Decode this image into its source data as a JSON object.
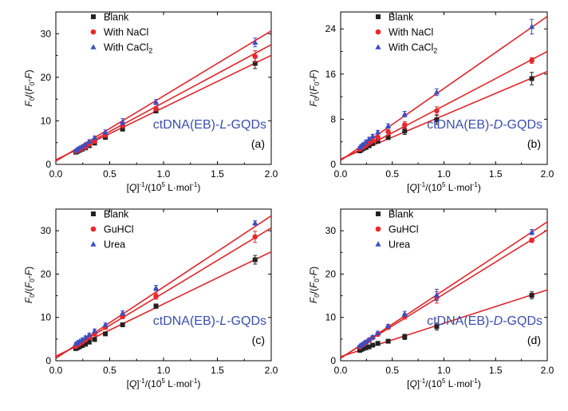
{
  "colors": {
    "blank": "#222222",
    "second": "#e8282b",
    "third": "#3a4fc4",
    "fit": "#e0262a",
    "label": "#3a4fb0"
  },
  "chart_data": [
    {
      "type": "scatter",
      "panel": "(a)",
      "title": "ctDNA(EB)-L-GQDs",
      "title_parts": [
        "ctDNA(EB)-",
        "L",
        "-GQDs"
      ],
      "xlabel_parts": [
        "[",
        "Q",
        "]",
        "-1",
        "/(10",
        "5",
        " L·mol",
        "-1",
        ")"
      ],
      "ylabel_parts": [
        "F",
        "0",
        "/(",
        "F",
        "0",
        "-",
        "F",
        ")"
      ],
      "xlim": [
        0,
        2.0
      ],
      "ylim": [
        0,
        35
      ],
      "xticks": [
        "0.0",
        "0.5",
        "1.0",
        "1.5",
        "2.0"
      ],
      "yticks": [
        0,
        10,
        20,
        30
      ],
      "legend_position": "top-left",
      "series": [
        {
          "name": "Blank",
          "marker": "square",
          "color": "#222222",
          "x": [
            0.185,
            0.2,
            0.22,
            0.245,
            0.275,
            0.31,
            0.36,
            0.46,
            0.62,
            0.93,
            1.85
          ],
          "y": [
            2.8,
            3.0,
            3.2,
            3.5,
            3.8,
            4.3,
            4.9,
            6.2,
            8.1,
            12.3,
            23.2
          ],
          "err": [
            0.2,
            0.2,
            0.2,
            0.2,
            0.2,
            0.3,
            0.3,
            0.3,
            0.4,
            0.5,
            1.2
          ],
          "fit": {
            "intercept": 1.05,
            "slope": 12.0
          }
        },
        {
          "name": "With NaCl",
          "marker": "circle",
          "color": "#e8282b",
          "x": [
            0.185,
            0.2,
            0.22,
            0.245,
            0.275,
            0.31,
            0.36,
            0.46,
            0.62,
            0.93,
            1.85
          ],
          "y": [
            3.0,
            3.2,
            3.4,
            3.7,
            4.0,
            4.6,
            5.3,
            6.7,
            8.9,
            12.8,
            24.8
          ],
          "err": [
            0.2,
            0.2,
            0.2,
            0.2,
            0.2,
            0.3,
            0.3,
            0.4,
            0.5,
            0.5,
            1.3
          ],
          "fit": {
            "intercept": 0.9,
            "slope": 13.3
          }
        },
        {
          "name": "With CaCl2",
          "marker": "triangle",
          "color": "#3a4fc4",
          "x": [
            0.185,
            0.2,
            0.22,
            0.245,
            0.275,
            0.31,
            0.36,
            0.46,
            0.62,
            0.93,
            1.85
          ],
          "y": [
            3.2,
            3.5,
            3.8,
            4.1,
            4.6,
            5.3,
            6.1,
            7.4,
            9.8,
            14.3,
            28.0
          ],
          "err": [
            0.2,
            0.2,
            0.2,
            0.3,
            0.3,
            0.3,
            0.4,
            0.5,
            0.7,
            0.6,
            1.0
          ],
          "fit": {
            "intercept": 0.75,
            "slope": 14.95
          }
        }
      ]
    },
    {
      "type": "scatter",
      "panel": "(b)",
      "title": "ctDNA(EB)-D-GQDs",
      "title_parts": [
        "ctDNA(EB)-",
        "D",
        "-GQDs"
      ],
      "xlabel_parts": [
        "[",
        "Q",
        "]",
        "-1",
        "/(10",
        "5",
        " L·mol",
        "-1",
        ")"
      ],
      "ylabel_parts": [
        "F",
        "0",
        "/(",
        "F",
        "0",
        "-",
        "F",
        ")"
      ],
      "xlim": [
        0,
        2.0
      ],
      "ylim": [
        0,
        27
      ],
      "xticks": [
        "0.0",
        "0.5",
        "1.0",
        "1.5",
        "2.0"
      ],
      "yticks": [
        0,
        8,
        16,
        24
      ],
      "legend_position": "top-left",
      "series": [
        {
          "name": "Blank",
          "marker": "square",
          "color": "#222222",
          "x": [
            0.185,
            0.2,
            0.22,
            0.245,
            0.275,
            0.31,
            0.36,
            0.46,
            0.62,
            0.93,
            1.85
          ],
          "y": [
            2.4,
            2.6,
            2.8,
            3.0,
            3.3,
            3.7,
            4.1,
            4.8,
            5.9,
            7.9,
            15.2
          ],
          "err": [
            0.2,
            0.2,
            0.2,
            0.2,
            0.2,
            0.3,
            0.3,
            0.4,
            0.6,
            0.8,
            1.1
          ],
          "fit": {
            "intercept": 0.95,
            "slope": 7.75
          }
        },
        {
          "name": "With NaCl",
          "marker": "circle",
          "color": "#e8282b",
          "x": [
            0.185,
            0.2,
            0.22,
            0.245,
            0.275,
            0.31,
            0.36,
            0.46,
            0.62,
            0.93,
            1.85
          ],
          "y": [
            2.7,
            2.9,
            3.1,
            3.4,
            3.8,
            4.2,
            4.8,
            5.8,
            7.0,
            9.5,
            18.4
          ],
          "err": [
            0.2,
            0.2,
            0.2,
            0.2,
            0.2,
            0.3,
            0.3,
            0.3,
            0.6,
            0.7,
            0.5
          ],
          "fit": {
            "intercept": 0.8,
            "slope": 9.6
          }
        },
        {
          "name": "With CaCl2",
          "marker": "triangle",
          "color": "#3a4fc4",
          "x": [
            0.185,
            0.2,
            0.22,
            0.245,
            0.275,
            0.31,
            0.36,
            0.46,
            0.62,
            0.93,
            1.85
          ],
          "y": [
            3.0,
            3.3,
            3.6,
            4.0,
            4.5,
            5.0,
            5.7,
            6.8,
            8.9,
            12.8,
            24.4
          ],
          "err": [
            0.2,
            0.2,
            0.2,
            0.3,
            0.3,
            0.3,
            0.3,
            0.4,
            0.5,
            0.6,
            1.3
          ],
          "fit": {
            "intercept": 0.7,
            "slope": 12.75
          }
        }
      ]
    },
    {
      "type": "scatter",
      "panel": "(c)",
      "title": "ctDNA(EB)-L-GQDs",
      "title_parts": [
        "ctDNA(EB)-",
        "L",
        "-GQDs"
      ],
      "xlabel_parts": [
        "[",
        "Q",
        "]",
        "-1",
        "/(10",
        "5",
        " L·mol",
        "-1",
        ")"
      ],
      "ylabel_parts": [
        "F",
        "0",
        "/(",
        "F",
        "0",
        "-",
        "F",
        ")"
      ],
      "xlim": [
        0,
        2.0
      ],
      "ylim": [
        0,
        35
      ],
      "xticks": [
        "0.0",
        "0.5",
        "1.0",
        "1.5",
        "2.0"
      ],
      "yticks": [
        0,
        10,
        20,
        30
      ],
      "legend_position": "top-left",
      "series": [
        {
          "name": "Blank",
          "marker": "square",
          "color": "#222222",
          "x": [
            0.185,
            0.2,
            0.22,
            0.245,
            0.275,
            0.31,
            0.36,
            0.46,
            0.62,
            0.93,
            1.85
          ],
          "y": [
            2.8,
            3.0,
            3.2,
            3.5,
            3.8,
            4.3,
            4.9,
            6.2,
            8.3,
            12.6,
            23.3
          ],
          "err": [
            0.2,
            0.2,
            0.2,
            0.2,
            0.2,
            0.3,
            0.3,
            0.3,
            0.4,
            0.5,
            1.0
          ],
          "fit": {
            "intercept": 1.05,
            "slope": 12.05
          }
        },
        {
          "name": "GuHCl",
          "marker": "circle",
          "color": "#e8282b",
          "x": [
            0.185,
            0.2,
            0.22,
            0.245,
            0.275,
            0.31,
            0.36,
            0.46,
            0.62,
            0.93,
            1.85
          ],
          "y": [
            3.3,
            3.6,
            3.9,
            4.3,
            4.8,
            5.4,
            6.2,
            7.7,
            10.2,
            14.9,
            28.6
          ],
          "err": [
            0.2,
            0.2,
            0.2,
            0.3,
            0.3,
            0.3,
            0.4,
            0.4,
            0.5,
            0.7,
            1.3
          ],
          "fit": {
            "intercept": 0.65,
            "slope": 15.0
          }
        },
        {
          "name": "Urea",
          "marker": "triangle",
          "color": "#3a4fc4",
          "x": [
            0.185,
            0.2,
            0.22,
            0.245,
            0.275,
            0.31,
            0.36,
            0.46,
            0.62,
            0.93,
            1.85
          ],
          "y": [
            3.9,
            4.2,
            4.5,
            4.9,
            5.4,
            6.0,
            6.9,
            8.3,
            11.0,
            16.8,
            31.8
          ],
          "err": [
            0.2,
            0.2,
            0.2,
            0.3,
            0.3,
            0.3,
            0.4,
            0.4,
            0.5,
            0.6,
            0.5
          ],
          "fit": {
            "intercept": 0.55,
            "slope": 16.45
          }
        }
      ]
    },
    {
      "type": "scatter",
      "panel": "(d)",
      "title": "ctDNA(EB)-D-GQDs",
      "title_parts": [
        "ctDNA(EB)-",
        "D",
        "-GQDs"
      ],
      "xlabel_parts": [
        "[",
        "Q",
        "]",
        "-1",
        "/(10",
        "5",
        " L·mol",
        "-1",
        ")"
      ],
      "ylabel_parts": [
        "F",
        "0",
        "/(",
        "F",
        "0",
        "-",
        "F",
        ")"
      ],
      "xlim": [
        0,
        2.0
      ],
      "ylim": [
        0,
        35
      ],
      "xticks": [
        "0.0",
        "0.5",
        "1.0",
        "1.5",
        "2.0"
      ],
      "yticks": [
        0,
        10,
        20,
        30
      ],
      "legend_position": "top-left",
      "series": [
        {
          "name": "Blank",
          "marker": "square",
          "color": "#222222",
          "x": [
            0.185,
            0.2,
            0.22,
            0.245,
            0.275,
            0.31,
            0.36,
            0.46,
            0.62,
            0.93,
            1.85
          ],
          "y": [
            2.4,
            2.6,
            2.8,
            3.0,
            3.2,
            3.6,
            4.0,
            4.5,
            5.5,
            7.9,
            15.1
          ],
          "err": [
            0.2,
            0.2,
            0.2,
            0.2,
            0.2,
            0.3,
            0.3,
            0.4,
            0.6,
            0.8,
            0.8
          ],
          "fit": {
            "intercept": 0.95,
            "slope": 7.7
          }
        },
        {
          "name": "GuHCl",
          "marker": "circle",
          "color": "#e8282b",
          "x": [
            0.185,
            0.2,
            0.22,
            0.245,
            0.275,
            0.31,
            0.36,
            0.46,
            0.62,
            0.93,
            1.85
          ],
          "y": [
            3.2,
            3.5,
            3.8,
            4.2,
            4.7,
            5.3,
            6.1,
            7.7,
            10.2,
            14.6,
            27.8
          ],
          "err": [
            0.2,
            0.2,
            0.2,
            0.3,
            0.3,
            0.3,
            0.4,
            0.4,
            0.6,
            1.3,
            0.5
          ],
          "fit": {
            "intercept": 0.65,
            "slope": 14.75
          }
        },
        {
          "name": "Urea",
          "marker": "triangle",
          "color": "#3a4fc4",
          "x": [
            0.185,
            0.2,
            0.22,
            0.245,
            0.275,
            0.31,
            0.36,
            0.46,
            0.62,
            0.93,
            1.85
          ],
          "y": [
            3.4,
            3.7,
            4.0,
            4.4,
            4.9,
            5.5,
            6.4,
            8.0,
            10.8,
            15.2,
            29.7
          ],
          "err": [
            0.2,
            0.2,
            0.2,
            0.3,
            0.3,
            0.3,
            0.4,
            0.4,
            0.6,
            1.3,
            0.6
          ],
          "fit": {
            "intercept": 0.55,
            "slope": 15.75
          }
        }
      ]
    }
  ]
}
